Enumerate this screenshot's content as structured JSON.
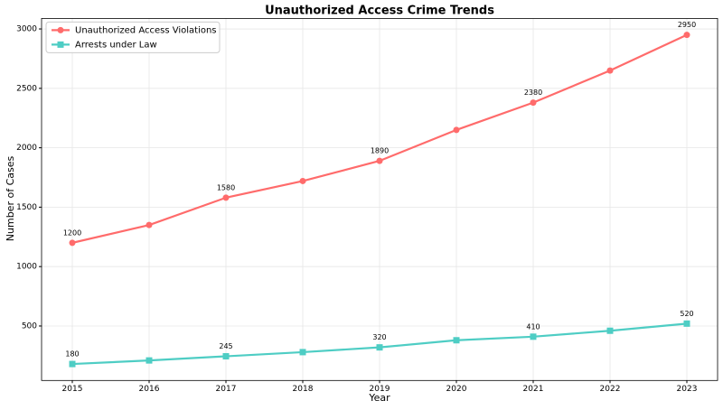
{
  "chart_data": {
    "type": "line",
    "title": "Unauthorized Access Crime Trends",
    "x_label": "Year",
    "y_label": "Number of Cases",
    "x": [
      2015,
      2016,
      2017,
      2018,
      2019,
      2020,
      2021,
      2022,
      2023
    ],
    "series": [
      {
        "name": "Unauthorized Access Violations",
        "color": "#ff6b6b",
        "marker": "circle",
        "values": [
          1200,
          1350,
          1580,
          1720,
          1890,
          2150,
          2380,
          2650,
          2950
        ]
      },
      {
        "name": "Arrests under Law",
        "color": "#4ecdc4",
        "marker": "square",
        "values": [
          180,
          210,
          245,
          280,
          320,
          380,
          410,
          460,
          520
        ]
      }
    ],
    "data_label_step": 2,
    "xlim": [
      2014.6,
      2023.4
    ],
    "xticks": [
      2015,
      2016,
      2017,
      2018,
      2019,
      2020,
      2021,
      2022,
      2023
    ],
    "ylim": [
      41.5,
      3088.5
    ],
    "yticks": [
      500,
      1000,
      1500,
      2000,
      2500,
      3000
    ],
    "grid": true,
    "legend": "upper left"
  }
}
